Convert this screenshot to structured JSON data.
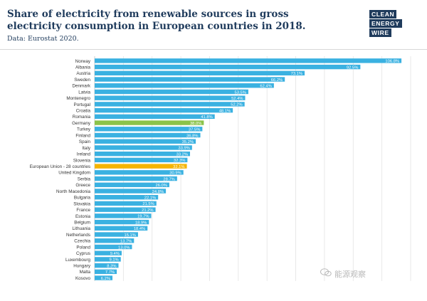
{
  "header": {
    "title": "Share of electricity from renewable sources in gross electricity consumption in European countries in 2018.",
    "subtitle": "Data: Eurostat 2020.",
    "logo": [
      "CLEAN",
      "ENERGY",
      "WIRE"
    ]
  },
  "watermark": "能源观察",
  "colors": {
    "bar_default": "#3ab1e1",
    "bar_germany": "#8bc34a",
    "bar_eu": "#f5b400",
    "title": "#1f3b5c",
    "grid": "#e3e3e3"
  },
  "chart_data": {
    "type": "bar",
    "orientation": "horizontal",
    "title": "Share of electricity from renewable sources in gross electricity consumption in European countries in 2018.",
    "subtitle": "Data: Eurostat 2020.",
    "xlabel": "",
    "ylabel": "",
    "xlim": [
      0,
      110
    ],
    "grid": true,
    "categories": [
      "Norway",
      "Albania",
      "Austria",
      "Sweden",
      "Denmark",
      "Latvia",
      "Montenegro",
      "Portugal",
      "Croatia",
      "Romania",
      "Germany",
      "Turkey",
      "Finland",
      "Spain",
      "Italy",
      "Ireland",
      "Slovenia",
      "European Union - 28 countries",
      "United Kingdom",
      "Serbia",
      "Greece",
      "North Macedonia",
      "Bulgaria",
      "Slovakia",
      "France",
      "Estonia",
      "Belgium",
      "Lithuania",
      "Netherlands",
      "Czechia",
      "Poland",
      "Cyprus",
      "Luxembourg",
      "Hungary",
      "Malta",
      "Kosovo"
    ],
    "values": [
      106.8,
      92.5,
      73.1,
      66.2,
      62.4,
      53.5,
      52.4,
      52.2,
      48.1,
      41.8,
      38.0,
      37.5,
      36.8,
      35.2,
      33.9,
      33.2,
      32.3,
      32.1,
      30.9,
      28.7,
      26.0,
      24.8,
      22.1,
      21.5,
      21.2,
      19.7,
      18.9,
      18.4,
      15.1,
      13.7,
      13.0,
      9.4,
      9.1,
      8.3,
      7.7,
      6.2
    ],
    "value_labels": [
      "106.8%",
      "92.5%",
      "73.1%",
      "66.2%",
      "62.4%",
      "53.5%",
      "52.4%",
      "52.2%",
      "48.1%",
      "41.8%",
      "38.0%",
      "37.5%",
      "36.8%",
      "35.2%",
      "33.9%",
      "33.2%",
      "32.3%",
      "32.1%",
      "30.9%",
      "28.7%",
      "26.0%",
      "24.8%",
      "22.1%",
      "21.5%",
      "21.2%",
      "19.7%",
      "18.9%",
      "18.4%",
      "15.1%",
      "13.7%",
      "13.0%",
      "9.4%",
      "9.1%",
      "8.3%",
      "7.7%",
      "6.2%"
    ],
    "highlight": {
      "Germany": "#8bc34a",
      "European Union - 28 countries": "#f5b400"
    }
  }
}
